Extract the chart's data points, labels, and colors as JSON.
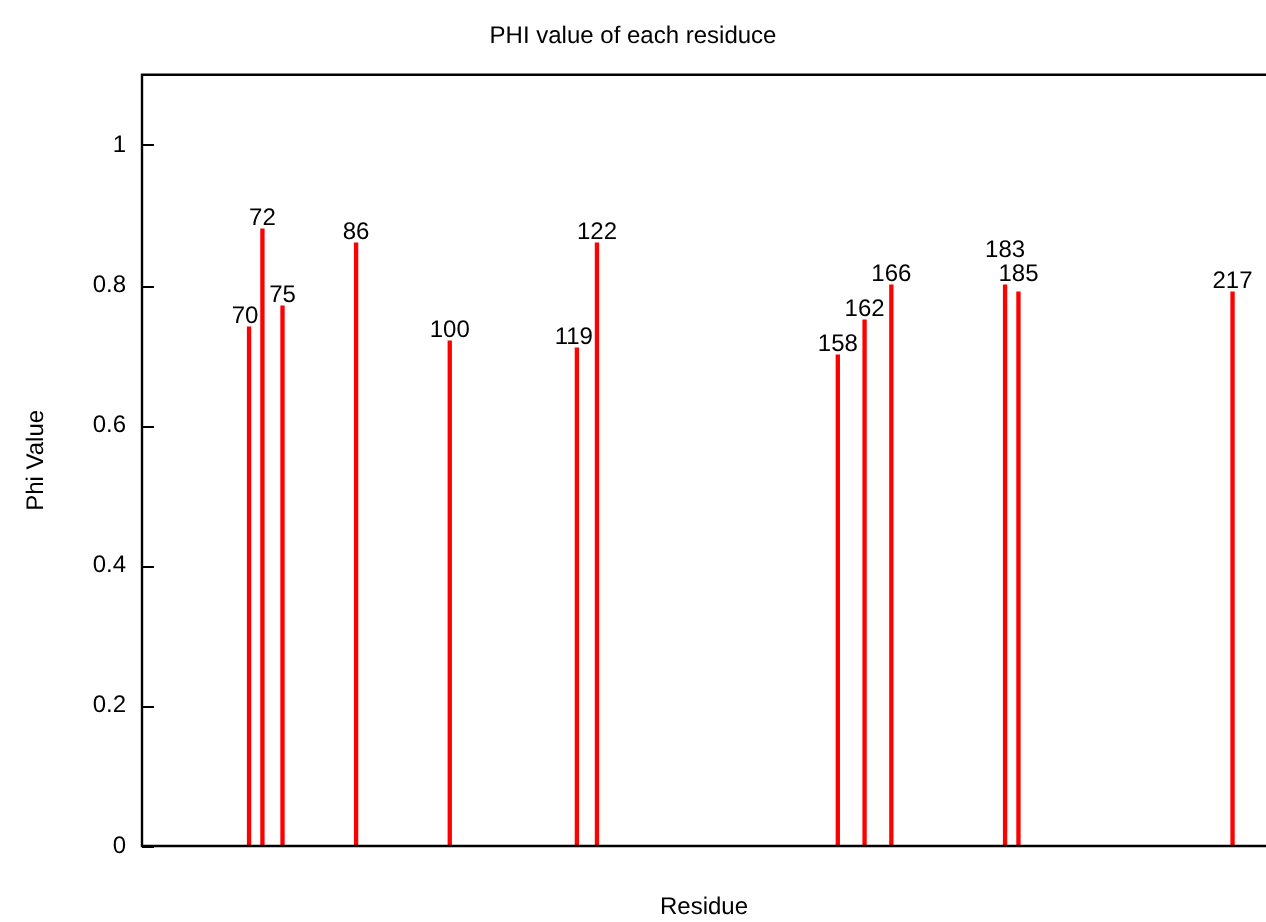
{
  "chart_data": {
    "type": "bar",
    "title": "PHI value of each residuce",
    "xlabel": "Residue",
    "ylabel": "Phi Value",
    "categories": [
      null,
      null,
      null,
      null,
      null,
      null,
      null,
      null,
      null,
      null,
      null,
      null,
      null,
      null,
      null,
      null,
      "70",
      null,
      "72",
      null,
      null,
      "75",
      null,
      null,
      null,
      null,
      null,
      null,
      null,
      null,
      null,
      null,
      "86",
      null,
      null,
      null,
      null,
      null,
      null,
      null,
      null,
      null,
      null,
      null,
      null,
      null,
      "100",
      null,
      null,
      null,
      null,
      null,
      null,
      null,
      null,
      null,
      null,
      null,
      null,
      null,
      null,
      null,
      null,
      null,
      null,
      "119",
      null,
      null,
      "122",
      null,
      null,
      null,
      null,
      null,
      null,
      null,
      null,
      null,
      null,
      null,
      null,
      null,
      null,
      null,
      null,
      null,
      null,
      null,
      null,
      null,
      null,
      null,
      null,
      null,
      null,
      null,
      null,
      null,
      null,
      null,
      null,
      null,
      null,
      null,
      "158",
      null,
      null,
      null,
      "162",
      null,
      null,
      null,
      "166",
      null,
      null,
      null,
      null,
      null,
      null,
      null,
      null,
      null,
      null,
      null,
      null,
      null,
      null,
      null,
      null,
      "183",
      null,
      "185",
      null,
      null,
      null,
      null,
      null,
      null,
      null,
      null,
      null,
      null,
      null,
      null,
      null,
      null,
      null,
      null,
      null,
      null,
      null,
      null,
      null,
      null,
      null,
      null,
      null,
      null,
      null,
      null,
      null,
      null,
      null,
      "217",
      null,
      null,
      null,
      null,
      null
    ],
    "values": [
      null,
      null,
      null,
      null,
      null,
      null,
      null,
      null,
      null,
      null,
      null,
      null,
      null,
      null,
      null,
      null,
      0.74,
      null,
      0.88,
      null,
      null,
      0.77,
      null,
      null,
      null,
      null,
      null,
      null,
      null,
      null,
      null,
      null,
      0.86,
      null,
      null,
      null,
      null,
      null,
      null,
      null,
      null,
      null,
      null,
      null,
      null,
      null,
      0.72,
      null,
      null,
      null,
      null,
      null,
      null,
      null,
      null,
      null,
      null,
      null,
      null,
      null,
      null,
      null,
      null,
      null,
      null,
      0.71,
      null,
      null,
      0.86,
      null,
      null,
      null,
      null,
      null,
      null,
      null,
      null,
      null,
      null,
      null,
      null,
      null,
      null,
      null,
      null,
      null,
      null,
      null,
      null,
      null,
      null,
      null,
      null,
      null,
      null,
      null,
      null,
      null,
      null,
      null,
      null,
      null,
      null,
      null,
      0.7,
      null,
      null,
      null,
      0.75,
      null,
      null,
      null,
      0.8,
      null,
      null,
      null,
      null,
      null,
      null,
      null,
      null,
      null,
      null,
      null,
      null,
      null,
      null,
      null,
      null,
      0.8,
      null,
      0.79,
      null,
      null,
      null,
      null,
      null,
      null,
      null,
      null,
      null,
      null,
      null,
      null,
      null,
      null,
      null,
      null,
      null,
      null,
      null,
      null,
      null,
      null,
      null,
      null,
      null,
      null,
      null,
      null,
      null,
      null,
      null,
      0.79,
      null,
      null,
      null,
      null,
      null
    ],
    "color": "#ff0000",
    "ylim": [
      0,
      1.1
    ],
    "yticks": [
      0,
      0.2,
      0.4,
      0.6,
      0.8,
      1
    ],
    "grid": false,
    "legend": false
  }
}
